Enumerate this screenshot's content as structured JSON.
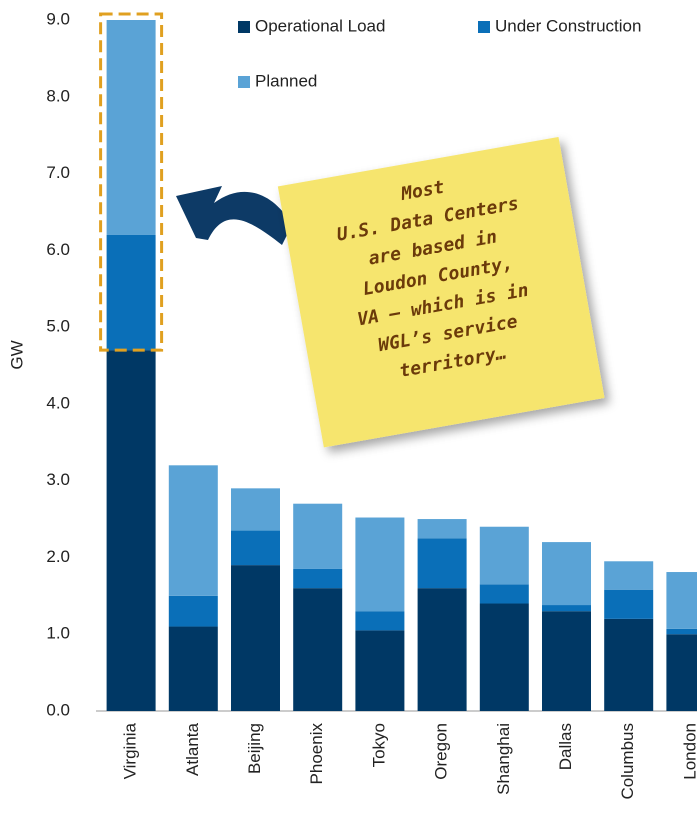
{
  "chart_data": {
    "type": "stacked_bar",
    "y_label": "GW",
    "categories": [
      "Virginia",
      "Atlanta",
      "Beijing",
      "Phoenix",
      "Tokyo",
      "Oregon",
      "Shanghai",
      "Dallas",
      "Columbus",
      "London"
    ],
    "series": [
      {
        "name": "Operational Load",
        "color": "#003865",
        "values": [
          4.7,
          1.1,
          1.9,
          1.6,
          1.05,
          1.6,
          1.4,
          1.3,
          1.2,
          1.0
        ]
      },
      {
        "name": "Under Construction",
        "color": "#0a6fb8",
        "values": [
          1.5,
          0.4,
          0.45,
          0.25,
          0.25,
          0.65,
          0.25,
          0.08,
          0.38,
          0.07
        ]
      },
      {
        "name": "Planned",
        "color": "#5aa3d6",
        "values": [
          2.8,
          1.7,
          0.55,
          0.85,
          1.22,
          0.25,
          0.75,
          0.82,
          0.37,
          0.74
        ]
      }
    ],
    "ylim": [
      0,
      9
    ],
    "yticks": [
      {
        "value": 0,
        "label": "0.0"
      },
      {
        "value": 1,
        "label": "1.0"
      },
      {
        "value": 2,
        "label": "2.0"
      },
      {
        "value": 3,
        "label": "3.0"
      },
      {
        "value": 4,
        "label": "4.0"
      },
      {
        "value": 5,
        "label": "5.0"
      },
      {
        "value": 6,
        "label": "6.0"
      },
      {
        "value": 7,
        "label": "7.0"
      },
      {
        "value": 8,
        "label": "8.0"
      },
      {
        "value": 9,
        "label": "9.0"
      }
    ],
    "annotation": [
      "Most",
      "U.S. Data Centers",
      "are based in",
      "Loudon County,",
      "VA – which is in",
      "WGL’s service",
      "territory…"
    ]
  }
}
